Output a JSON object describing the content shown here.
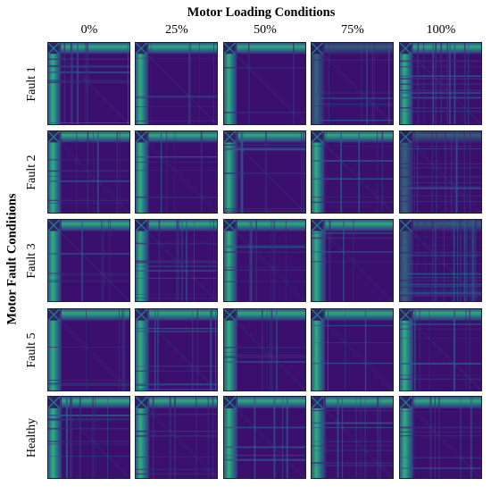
{
  "figure": {
    "column_title": "Motor Loading Conditions",
    "row_title": "Motor Fault Conditions",
    "columns": [
      "0%",
      "25%",
      "50%",
      "75%",
      "100%"
    ],
    "rows": [
      "Fault 1",
      "Fault 2",
      "Fault 3",
      "Fault 5",
      "Healthy"
    ],
    "colormap": [
      "#440154",
      "#3b2e7a",
      "#2c5b8c",
      "#21908c",
      "#35b779",
      "#8fd744"
    ]
  }
}
